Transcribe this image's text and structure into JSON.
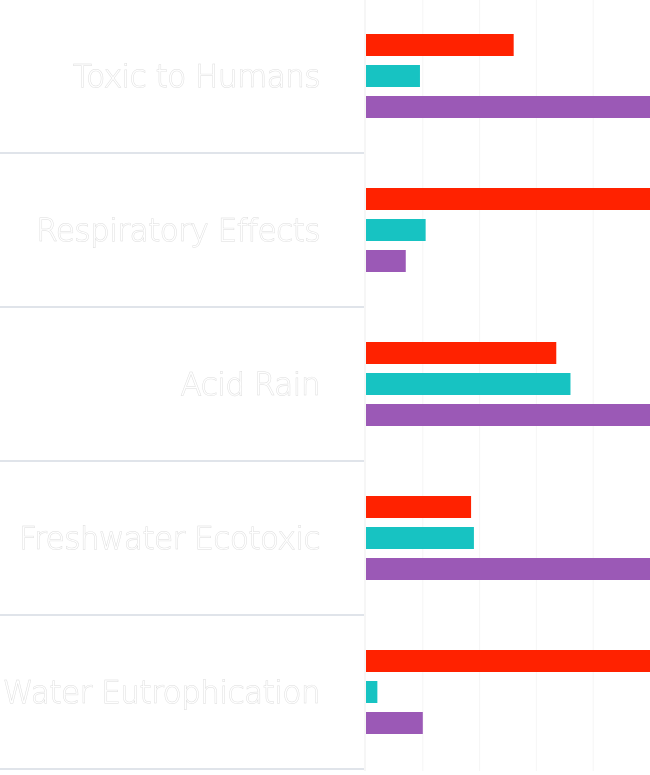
{
  "chart_data": {
    "type": "bar",
    "orientation": "horizontal",
    "categories": [
      "Toxic to Humans",
      "Respiratory Effects",
      "Acid Rain",
      "Freshwater Ecotoxic",
      "Water Eutrophication"
    ],
    "series": [
      {
        "color": "#ff2200",
        "values": [
          52,
          100,
          67,
          37,
          100
        ]
      },
      {
        "color": "#17c3c2",
        "values": [
          19,
          21,
          72,
          38,
          4
        ]
      },
      {
        "color": "#9b59b6",
        "values": [
          100,
          14,
          100,
          100,
          20
        ]
      }
    ],
    "xlim": [
      0,
      100
    ],
    "grid": true,
    "legend": "none",
    "title": "",
    "xlabel": "",
    "ylabel": ""
  }
}
